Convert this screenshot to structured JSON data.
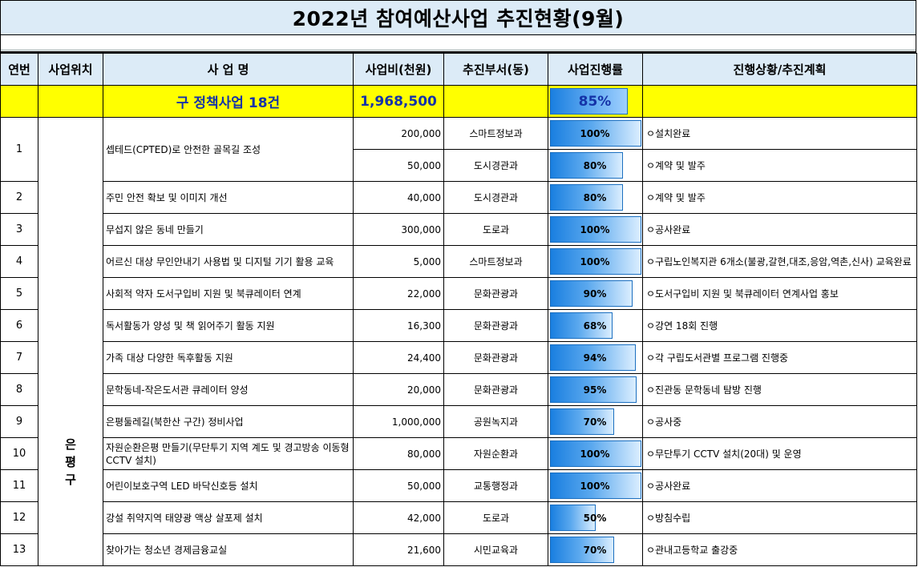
{
  "title": "2022년 참여예산사업 추진현황(9월)",
  "headers": {
    "no": "연번",
    "location": "사업위치",
    "name": "사 업 명",
    "cost": "사업비(천원)",
    "dept": "추진부서(동)",
    "progress": "사업진행률",
    "status": "진행상황/추진계획"
  },
  "summary": {
    "name": "구 정책사업 18건",
    "cost": "1,968,500",
    "progress_label": "85%",
    "progress": 85
  },
  "location_chars": [
    "은",
    "평",
    "구"
  ],
  "rows": [
    {
      "no": "1",
      "name": "셉테드(CPTED)로 안전한 골목길 조성",
      "cost": "200,000",
      "dept": "스마트정보과",
      "progress_label": "100%",
      "progress": 100,
      "status": "ㅇ설치완료"
    },
    {
      "no": "",
      "name": "",
      "cost": "50,000",
      "dept": "도시경관과",
      "progress_label": "80%",
      "progress": 80,
      "status": "ㅇ계약 및 발주"
    },
    {
      "no": "2",
      "name": "주민 안전 확보 및 이미지 개선",
      "cost": "40,000",
      "dept": "도시경관과",
      "progress_label": "80%",
      "progress": 80,
      "status": "ㅇ계약 및 발주"
    },
    {
      "no": "3",
      "name": "무섭지 않은 동네 만들기",
      "cost": "300,000",
      "dept": "도로과",
      "progress_label": "100%",
      "progress": 100,
      "status": "ㅇ공사완료"
    },
    {
      "no": "4",
      "name": "어르신 대상 무인안내기 사용법 및 디지털 기기 활용 교육",
      "cost": "5,000",
      "dept": "스마트정보과",
      "progress_label": "100%",
      "progress": 100,
      "status": "ㅇ구립노인복지관 6개소(불광,갈현,대조,응암,역촌,신사) 교육완료"
    },
    {
      "no": "5",
      "name": "사회적 약자 도서구입비 지원 및 북큐레이터 연계",
      "cost": "22,000",
      "dept": "문화관광과",
      "progress_label": "90%",
      "progress": 90,
      "status": "ㅇ도서구입비 지원 및 북큐레이터 연계사업 홍보"
    },
    {
      "no": "6",
      "name": "독서활동가 양성 및 책 읽어주기 활동 지원",
      "cost": "16,300",
      "dept": "문화관광과",
      "progress_label": "68%",
      "progress": 68,
      "status": "ㅇ강연 18회 진행"
    },
    {
      "no": "7",
      "name": "가족 대상 다양한 독후활동 지원",
      "cost": "24,400",
      "dept": "문화관광과",
      "progress_label": "94%",
      "progress": 94,
      "status": "ㅇ각 구립도서관별 프로그램 진행중"
    },
    {
      "no": "8",
      "name": "문학동네-작은도서관 큐레이터 양성",
      "cost": "20,000",
      "dept": "문화관광과",
      "progress_label": "95%",
      "progress": 95,
      "status": "ㅇ진관동 문학동네 탐방 진행"
    },
    {
      "no": "9",
      "name": "은평둘레길(북한산 구간) 정비사업",
      "cost": "1,000,000",
      "dept": "공원녹지과",
      "progress_label": "70%",
      "progress": 70,
      "status": "ㅇ공사중"
    },
    {
      "no": "10",
      "name": "자원순환은평 만들기(무단투기 지역 계도 및 경고방송 이동형 CCTV 설치)",
      "cost": "80,000",
      "dept": "자원순환과",
      "progress_label": "100%",
      "progress": 100,
      "status": "ㅇ무단투기 CCTV 설치(20대) 및 운영"
    },
    {
      "no": "11",
      "name": "어린이보호구역 LED 바닥신호등 설치",
      "cost": "50,000",
      "dept": "교통행정과",
      "progress_label": "100%",
      "progress": 100,
      "status": "ㅇ공사완료"
    },
    {
      "no": "12",
      "name": "강설 취약지역 태양광 액상 살포제 설치",
      "cost": "42,000",
      "dept": "도로과",
      "progress_label": "50%",
      "progress": 50,
      "status": "ㅇ방침수립"
    },
    {
      "no": "13",
      "name": "찾아가는 청소년 경제금융교실",
      "cost": "21,600",
      "dept": "시민교육과",
      "progress_label": "70%",
      "progress": 70,
      "status": "ㅇ관내고등학교 출강중"
    }
  ]
}
